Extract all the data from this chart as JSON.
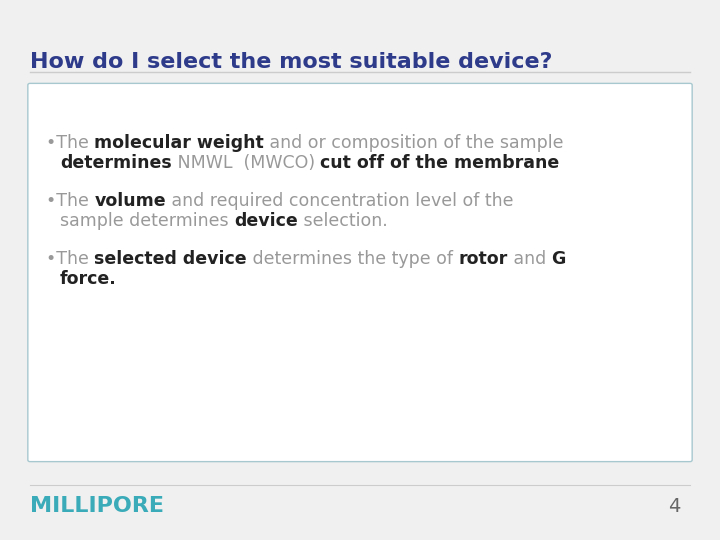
{
  "title": "How do I select the most suitable device?",
  "title_color": "#2E3B8B",
  "title_fontsize": 16,
  "background_color": "#F0F0F0",
  "box_bg_color": "#FFFFFF",
  "box_border_color": "#A8C8D0",
  "footer_text": "MILLIPORE",
  "footer_color": "#3AABB8",
  "page_number": "4",
  "page_number_color": "#666666",
  "separator_color": "#CCCCCC",
  "font_size": 12.5,
  "gray_color": "#999999",
  "dark_color": "#222222"
}
